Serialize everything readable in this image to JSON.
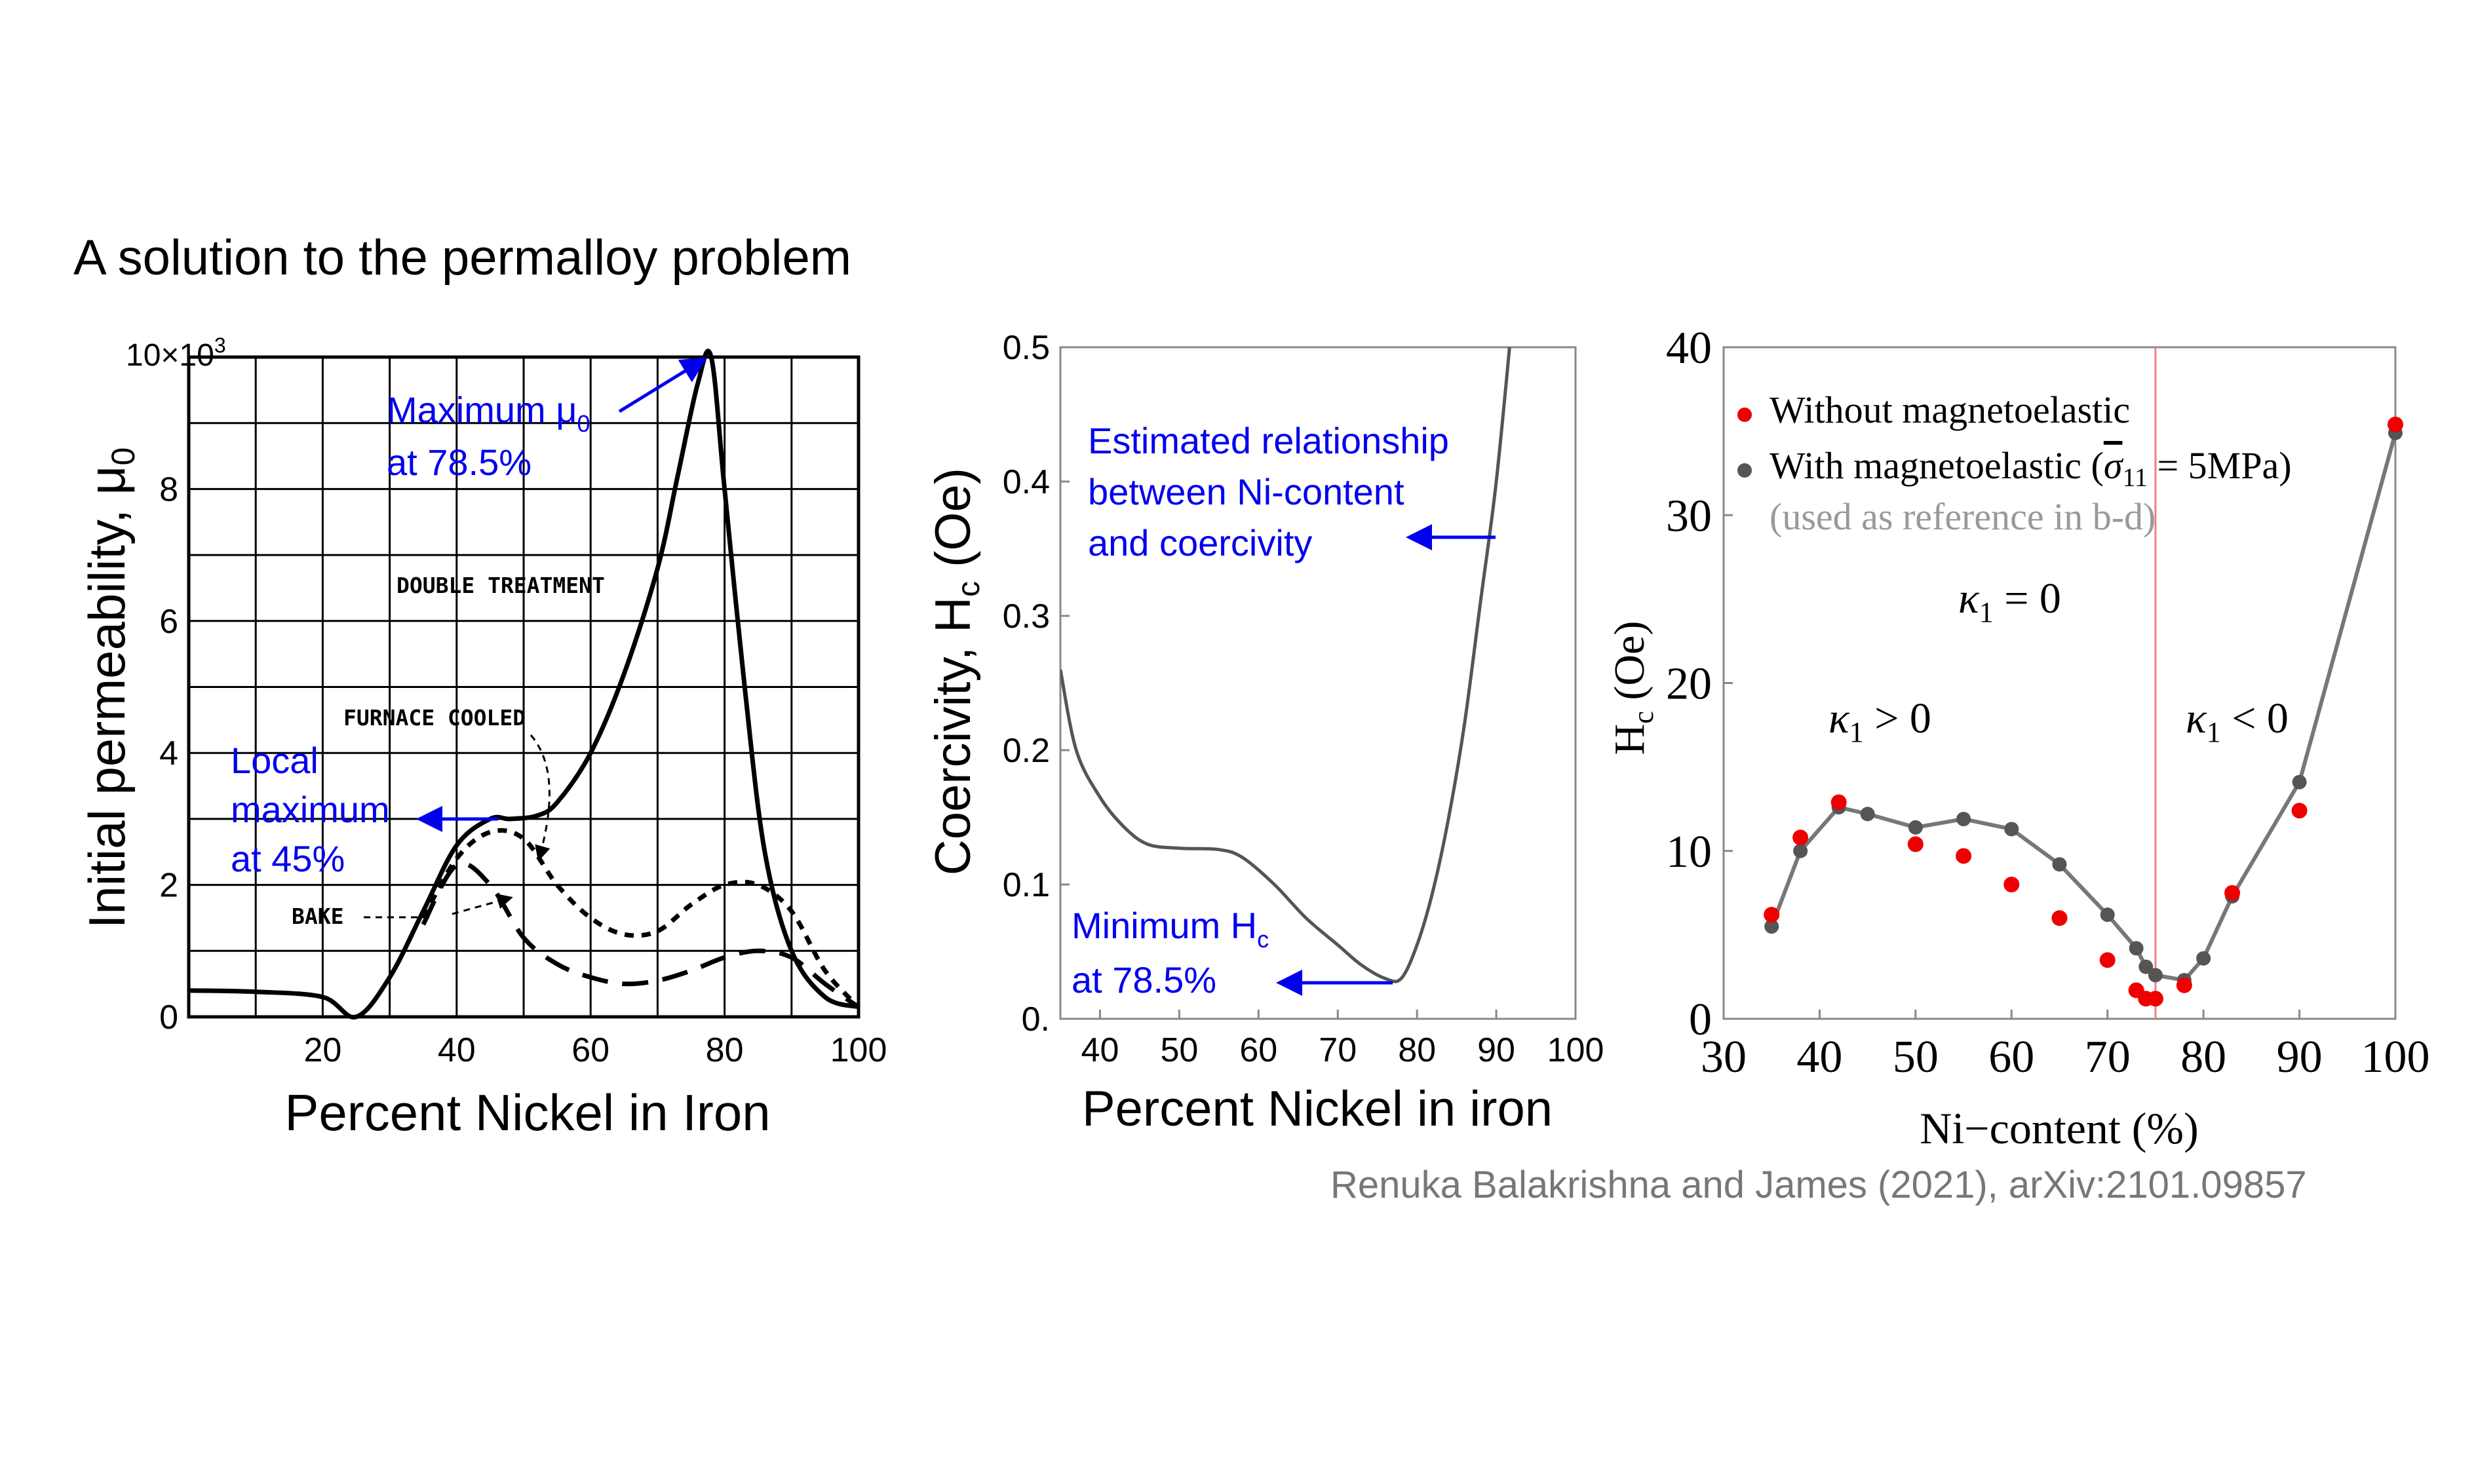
{
  "title": "A solution to the permalloy problem",
  "credit": "Renuka Balakrishna and James (2021), arXiv:2101.09857",
  "colors": {
    "annotation": "#0000ee",
    "red_series": "#ee0000",
    "gray_series": "#555555",
    "curve_gray": "#555555",
    "ref_line": "#f08080"
  },
  "chart_data": [
    {
      "type": "line",
      "panel": "a",
      "xlabel": "Percent Nickel in Iron",
      "ylabel": "Initial permeability, μ",
      "ylabel_sub": "0",
      "xlim": [
        0,
        100
      ],
      "ylim": [
        0,
        10000
      ],
      "grid": true,
      "x_ticks": [
        "20",
        "40",
        "60",
        "80",
        "100"
      ],
      "y_ticks": [
        "0",
        "2",
        "4",
        "6",
        "8"
      ],
      "y_top_tick": "10×10",
      "y_top_tick_sup": "3",
      "series": [
        {
          "name": "DOUBLE TREATMENT",
          "style": "solid",
          "x": [
            0,
            10,
            20,
            25,
            30,
            35,
            40,
            45,
            48,
            52,
            55,
            60,
            65,
            70,
            73,
            76,
            78,
            80,
            83,
            86,
            90,
            95,
            100
          ],
          "y": [
            400,
            380,
            300,
            0,
            600,
            1600,
            2600,
            3000,
            3000,
            3050,
            3250,
            4000,
            5200,
            6800,
            8200,
            9600,
            10000,
            8000,
            5000,
            2500,
            1000,
            300,
            150
          ]
        },
        {
          "name": "FURNACE COOLED",
          "style": "dotted",
          "x": [
            35,
            40,
            45,
            50,
            55,
            60,
            65,
            70,
            75,
            80,
            85,
            90,
            95,
            100
          ],
          "y": [
            1500,
            2400,
            2800,
            2700,
            2000,
            1500,
            1250,
            1300,
            1700,
            2000,
            2000,
            1600,
            700,
            150
          ]
        },
        {
          "name": "BAKE",
          "style": "dashed",
          "x": [
            35,
            40,
            45,
            50,
            55,
            60,
            65,
            70,
            75,
            80,
            85,
            90,
            95,
            100
          ],
          "y": [
            1400,
            2300,
            2000,
            1200,
            800,
            600,
            500,
            550,
            700,
            900,
            1000,
            900,
            500,
            150
          ]
        }
      ],
      "curve_labels": [
        "DOUBLE TREATMENT",
        "FURNACE COOLED",
        "BAKE"
      ],
      "annotations": [
        {
          "lines": [
            "Maximum μ",
            "at 78.5%"
          ],
          "sub": "0"
        },
        {
          "lines": [
            "Local",
            "maximum",
            "at 45%"
          ]
        }
      ]
    },
    {
      "type": "line",
      "panel": "b",
      "xlabel": "Percent Nickel in iron",
      "ylabel": "Coercivity, H",
      "ylabel_sub": "c",
      "ylabel_unit": " (Oe)",
      "xlim": [
        35,
        100
      ],
      "ylim": [
        0,
        0.5
      ],
      "grid": false,
      "x_ticks": [
        "40",
        "50",
        "60",
        "70",
        "80",
        "90",
        "100"
      ],
      "y_ticks": [
        "0.",
        "0.1",
        "0.2",
        "0.3",
        "0.4",
        "0.5"
      ],
      "series": [
        {
          "x": [
            35,
            37,
            40,
            43,
            46,
            50,
            55,
            58,
            62,
            66,
            70,
            73,
            76,
            78,
            80,
            82,
            84,
            86,
            88,
            90,
            92
          ],
          "y": [
            0.26,
            0.2,
            0.165,
            0.143,
            0.13,
            0.127,
            0.126,
            0.12,
            0.1,
            0.075,
            0.055,
            0.04,
            0.03,
            0.03,
            0.055,
            0.095,
            0.15,
            0.22,
            0.31,
            0.4,
            0.52
          ]
        }
      ],
      "annotations": [
        {
          "lines": [
            "Estimated relationship",
            "between Ni-content",
            "and coercivity"
          ]
        },
        {
          "lines": [
            "Minimum H",
            "at 78.5%"
          ],
          "sub": "c"
        }
      ]
    },
    {
      "type": "scatter",
      "panel": "c",
      "xlabel": "Ni−content (%)",
      "ylabel": "H",
      "ylabel_sub": "c",
      "ylabel_unit": " (Oe)",
      "xlim": [
        30,
        100
      ],
      "ylim": [
        0,
        40
      ],
      "grid": false,
      "x_ticks": [
        "30",
        "40",
        "50",
        "60",
        "70",
        "80",
        "90",
        "100"
      ],
      "y_ticks": [
        "0",
        "10",
        "20",
        "30",
        "40"
      ],
      "series": [
        {
          "name": "Without magnetoelastic",
          "color": "#ee0000",
          "x": [
            35,
            38,
            42,
            50,
            55,
            60,
            65,
            70,
            73,
            74,
            75,
            78,
            83,
            90,
            100
          ],
          "y": [
            6.2,
            10.8,
            12.9,
            10.4,
            9.7,
            8.0,
            6.0,
            3.5,
            1.7,
            1.2,
            1.2,
            2.0,
            7.5,
            12.4,
            35.4
          ]
        },
        {
          "name": "With magnetoelastic (σ̄11 = 5MPa)",
          "color": "#555555",
          "x": [
            35,
            38,
            42,
            45,
            50,
            55,
            60,
            65,
            70,
            73,
            74,
            75,
            78,
            80,
            83,
            90,
            100
          ],
          "y": [
            5.5,
            10.0,
            12.6,
            12.2,
            11.4,
            11.9,
            11.3,
            9.2,
            6.2,
            4.2,
            3.1,
            2.6,
            2.3,
            3.6,
            7.3,
            14.1,
            34.9
          ]
        }
      ],
      "legend": {
        "without": "Without magnetoelastic",
        "with_prefix": "With magnetoelastic (",
        "with_sigma": "σ",
        "with_sub": "11",
        "with_suffix": " = 5MPa)",
        "note": "(used as reference in b-d)"
      },
      "reference_line_x": 75,
      "region_labels": [
        {
          "greek": "κ",
          "sub": "1",
          "rest": " > 0"
        },
        {
          "greek": "κ",
          "sub": "1",
          "rest": " = 0"
        },
        {
          "greek": "κ",
          "sub": "1",
          "rest": " < 0"
        }
      ]
    }
  ]
}
